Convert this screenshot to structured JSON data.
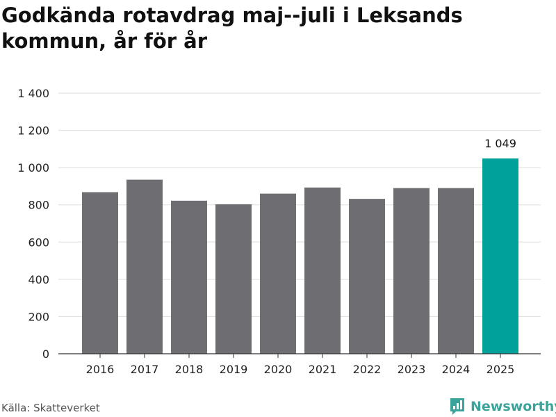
{
  "title": "Godkända rotavdrag maj--juli i Leksands kommun, år för år",
  "source": "Källa: Skatteverket",
  "brand": "Newsworthy",
  "colors": {
    "bar": "#6e6d72",
    "highlight": "#00a19a",
    "grid": "#dedede",
    "axis": "#333333"
  },
  "chart_data": {
    "type": "bar",
    "title": "Godkända rotavdrag maj--juli i Leksands kommun, år för år",
    "xlabel": "",
    "ylabel": "",
    "categories": [
      "2016",
      "2017",
      "2018",
      "2019",
      "2020",
      "2021",
      "2022",
      "2023",
      "2024",
      "2025"
    ],
    "values": [
      868,
      935,
      822,
      803,
      860,
      893,
      832,
      890,
      890,
      1049
    ],
    "highlight_index": 9,
    "data_labels": [
      {
        "index": 9,
        "text": "1 049"
      }
    ],
    "ylim": [
      0,
      1400
    ],
    "yticks": [
      0,
      200,
      400,
      600,
      800,
      1000,
      1200,
      1400
    ],
    "ytick_labels": [
      "0",
      "200",
      "400",
      "600",
      "800",
      "1 000",
      "1 200",
      "1 400"
    ],
    "grid": true,
    "legend": "none"
  }
}
